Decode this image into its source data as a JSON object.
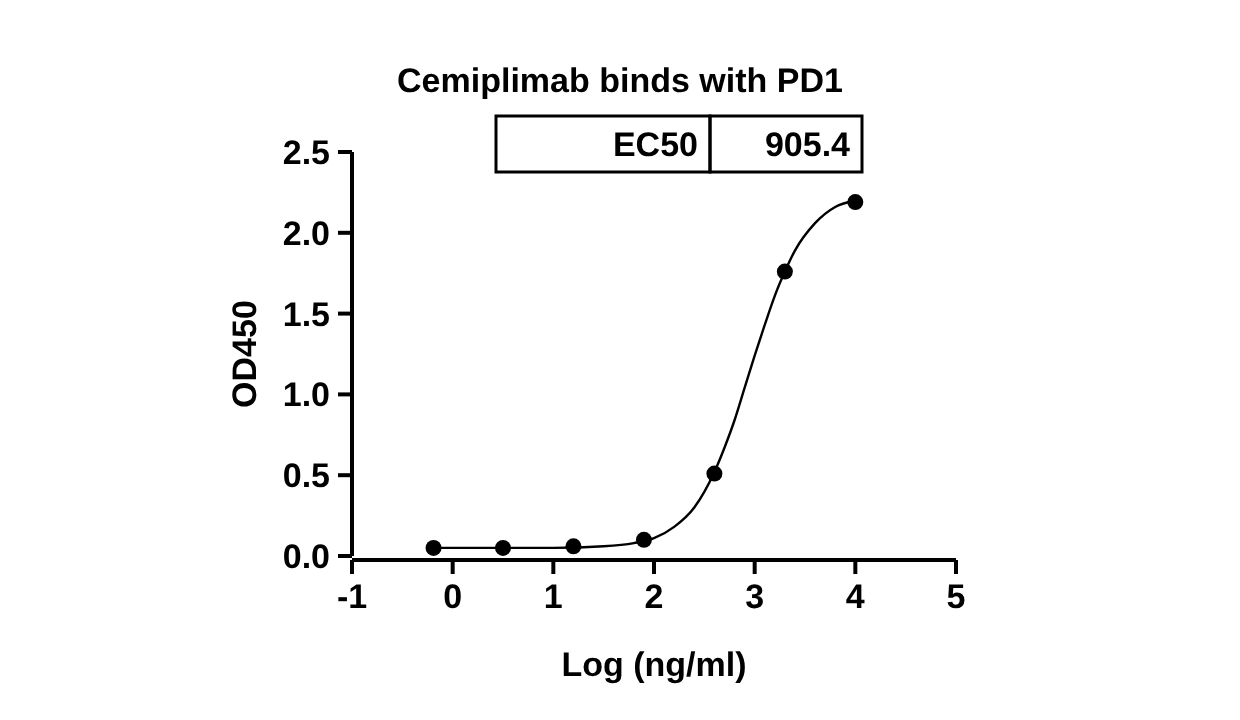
{
  "chart_data": {
    "type": "scatter",
    "title": "Cemiplimab binds with PD1",
    "xlabel": "Log (ng/ml)",
    "ylabel": "OD450",
    "xlim": [
      -1,
      5
    ],
    "xticks": [
      -1,
      0,
      1,
      2,
      3,
      4,
      5
    ],
    "ylim": [
      0,
      2.5
    ],
    "yticks": [
      {
        "value": 0,
        "label": "0.0"
      },
      {
        "value": 0.5,
        "label": "0.5"
      },
      {
        "value": 1,
        "label": "1.0"
      },
      {
        "value": 1.5,
        "label": "1.5"
      },
      {
        "value": 2,
        "label": "2.0"
      },
      {
        "value": 2.5,
        "label": "2.5"
      }
    ],
    "marker": "circle",
    "grid": false,
    "series": [
      {
        "color": "#000000",
        "x": [
          -0.19,
          0.5,
          1.2,
          1.9,
          2.6,
          3.3,
          4.0
        ],
        "values": [
          0.05,
          0.05,
          0.06,
          0.1,
          0.51,
          1.76,
          2.19
        ]
      },
      {
        "type": "line",
        "color": "#000000",
        "marker": "none",
        "x": [
          -0.2,
          1.0,
          1.5,
          1.8,
          2.0,
          2.2,
          2.4,
          2.6,
          2.7,
          2.8,
          2.9,
          3.0,
          3.1,
          3.2,
          3.3,
          3.4,
          3.6,
          3.8,
          4.0
        ],
        "values": [
          0.05,
          0.05,
          0.06,
          0.08,
          0.11,
          0.18,
          0.3,
          0.52,
          0.67,
          0.84,
          1.04,
          1.24,
          1.43,
          1.61,
          1.76,
          1.89,
          2.06,
          2.16,
          2.2
        ]
      }
    ],
    "annotations": [
      "EC50",
      "905.4"
    ]
  }
}
